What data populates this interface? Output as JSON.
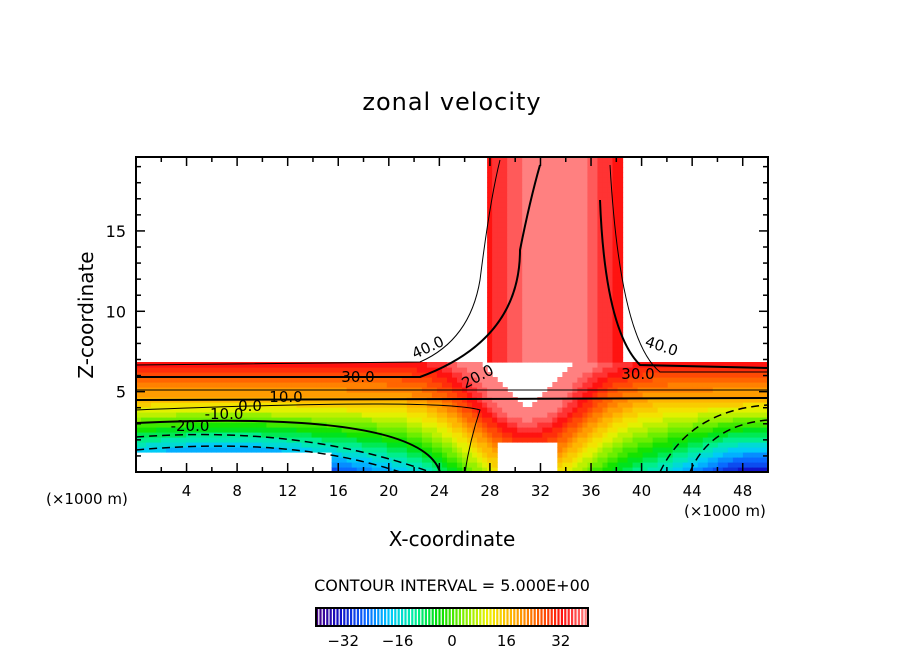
{
  "chart_data": {
    "type": "heatmap",
    "subtype": "filled-contour",
    "title": "zonal velocity",
    "xlabel": "X-coordinate",
    "ylabel": "Z-coordinate",
    "x_unit_label": "(×1000 m)",
    "xlim": [
      0,
      50
    ],
    "ylim": [
      0,
      19.6
    ],
    "x_ticks": [
      4,
      8,
      12,
      16,
      20,
      24,
      28,
      32,
      36,
      40,
      44,
      48
    ],
    "y_ticks": [
      5,
      10,
      15
    ],
    "contour_interval_text": "CONTOUR INTERVAL = 5.000E+00",
    "contour_interval": 5,
    "contour_labels": [
      "40.0",
      "30.0",
      "20.0",
      "10.0",
      "0.0",
      "-10.0",
      "-20.0",
      "40.0",
      "30.0"
    ],
    "colorbar": {
      "min": -40,
      "max": 40,
      "ticks": [
        -32,
        -16,
        0,
        16,
        32
      ],
      "tick_labels": [
        "−32",
        "−16",
        "0",
        "16",
        "32"
      ],
      "colors": [
        "#4b0082",
        "#1010c8",
        "#0a64ff",
        "#00c8ff",
        "#00f0a0",
        "#00e000",
        "#80f000",
        "#f0f000",
        "#ffb000",
        "#ff6000",
        "#ff1010",
        "#ff8080"
      ]
    }
  }
}
